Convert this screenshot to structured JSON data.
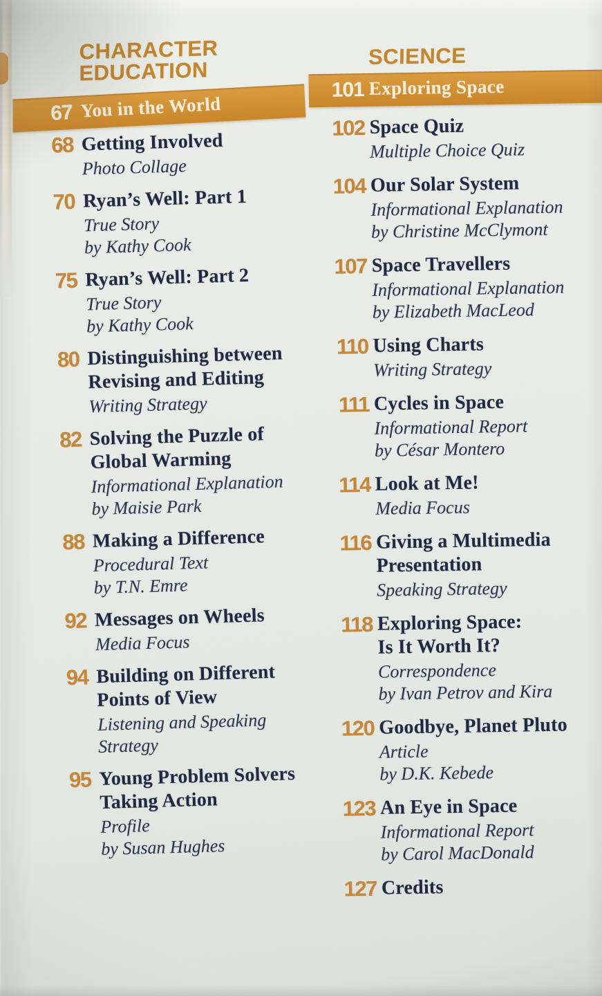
{
  "page_kind": "book-table-of-contents-photo",
  "colors": {
    "accent_orange": "#c5862f",
    "entry_number_orange": "#c6883a",
    "banner_orange": "#d29133",
    "banner_text_cream": "#f4efdf",
    "title_navy": "#1e2944",
    "page_background": "#e8ebe6"
  },
  "columns": [
    {
      "id": "character-education",
      "header_lines": [
        "CHARACTER",
        "EDUCATION"
      ],
      "banner": {
        "number": "67",
        "title": "You in the World"
      },
      "entries": [
        {
          "number": "68",
          "title_lines": [
            "Getting Involved"
          ],
          "detail_lines": [
            "Photo Collage"
          ]
        },
        {
          "number": "70",
          "title_lines": [
            "Ryan’s Well: Part 1"
          ],
          "detail_lines": [
            "True Story",
            "by Kathy Cook"
          ]
        },
        {
          "number": "75",
          "title_lines": [
            "Ryan’s Well: Part 2"
          ],
          "detail_lines": [
            "True Story",
            "by Kathy Cook"
          ]
        },
        {
          "number": "80",
          "title_lines": [
            "Distinguishing between",
            "Revising and Editing"
          ],
          "detail_lines": [
            "Writing Strategy"
          ]
        },
        {
          "number": "82",
          "title_lines": [
            "Solving the Puzzle of",
            "Global Warming"
          ],
          "detail_lines": [
            "Informational Explanation",
            "by Maisie Park"
          ]
        },
        {
          "number": "88",
          "title_lines": [
            "Making a Difference"
          ],
          "detail_lines": [
            "Procedural Text",
            "by T.N. Emre"
          ]
        },
        {
          "number": "92",
          "title_lines": [
            "Messages on Wheels"
          ],
          "detail_lines": [
            "Media Focus"
          ]
        },
        {
          "number": "94",
          "title_lines": [
            "Building on Different",
            "Points of View"
          ],
          "detail_lines": [
            "Listening and Speaking",
            "Strategy"
          ]
        },
        {
          "number": "95",
          "title_lines": [
            "Young Problem Solvers",
            "Taking Action"
          ],
          "detail_lines": [
            "Profile",
            "by Susan Hughes"
          ]
        }
      ]
    },
    {
      "id": "science",
      "header_lines": [
        "SCIENCE"
      ],
      "banner": {
        "number": "101",
        "title": "Exploring Space"
      },
      "entries": [
        {
          "number": "102",
          "title_lines": [
            "Space Quiz"
          ],
          "detail_lines": [
            "Multiple Choice Quiz"
          ]
        },
        {
          "number": "104",
          "title_lines": [
            "Our Solar System"
          ],
          "detail_lines": [
            "Informational Explanation",
            "by Christine McClymont"
          ]
        },
        {
          "number": "107",
          "title_lines": [
            "Space Travellers"
          ],
          "detail_lines": [
            "Informational Explanation",
            "by Elizabeth MacLeod"
          ]
        },
        {
          "number": "110",
          "title_lines": [
            "Using Charts"
          ],
          "detail_lines": [
            "Writing Strategy"
          ]
        },
        {
          "number": "111",
          "title_lines": [
            "Cycles in Space"
          ],
          "detail_lines": [
            "Informational Report",
            "by César Montero"
          ]
        },
        {
          "number": "114",
          "title_lines": [
            "Look at Me!"
          ],
          "detail_lines": [
            "Media Focus"
          ]
        },
        {
          "number": "116",
          "title_lines": [
            "Giving a Multimedia",
            "Presentation"
          ],
          "detail_lines": [
            "Speaking Strategy"
          ]
        },
        {
          "number": "118",
          "title_lines": [
            "Exploring Space:",
            "Is It Worth It?"
          ],
          "detail_lines": [
            "Correspondence",
            "by Ivan Petrov and Kira"
          ]
        },
        {
          "number": "120",
          "title_lines": [
            "Goodbye, Planet Pluto"
          ],
          "detail_lines": [
            "Article",
            "by D.K. Kebede"
          ]
        },
        {
          "number": "123",
          "title_lines": [
            "An Eye in Space"
          ],
          "detail_lines": [
            "Informational Report",
            "by Carol MacDonald"
          ]
        },
        {
          "number": "127",
          "title_lines": [
            "Credits"
          ],
          "detail_lines": []
        }
      ]
    }
  ]
}
